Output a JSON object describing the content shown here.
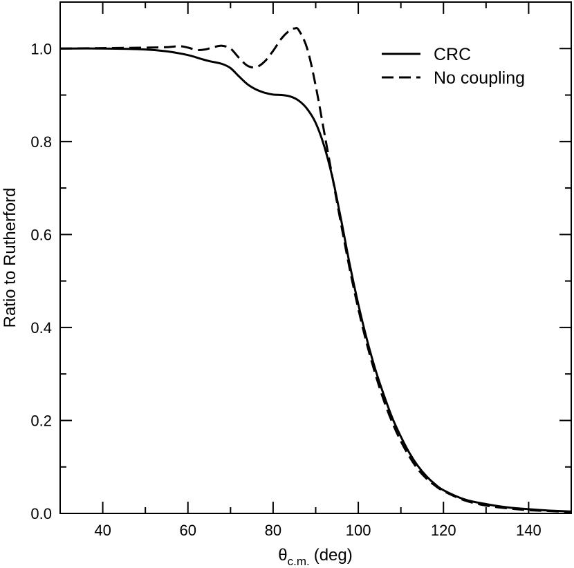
{
  "chart_data": {
    "type": "line",
    "title": "",
    "xlabel": {
      "symbol": "θ",
      "subscript": "c.m.",
      "unit": "(deg)"
    },
    "ylabel": "Ratio to Rutherford",
    "xlim": [
      30,
      150
    ],
    "ylim": [
      0,
      1.1
    ],
    "xticks": [
      40,
      60,
      80,
      100,
      120,
      140
    ],
    "xtick_labels": [
      "40",
      "60",
      "80",
      "100",
      "120",
      "140"
    ],
    "yticks": [
      0,
      0.2,
      0.4,
      0.6,
      0.8,
      1.0
    ],
    "ytick_labels": [
      "0.0",
      "0.2",
      "0.4",
      "0.6",
      "0.8",
      "1.0"
    ],
    "x_minor_step": 10,
    "y_minor_step": 0.1,
    "grid": false,
    "legend_position": "top-right",
    "series": [
      {
        "name": "CRC",
        "style": "solid",
        "color": "#000000",
        "x": [
          30,
          40,
          50,
          55,
          60,
          63,
          65,
          68,
          70,
          72,
          74,
          76,
          78,
          80,
          82,
          84,
          86,
          88,
          90,
          92,
          94,
          96,
          98,
          100,
          102,
          104,
          106,
          108,
          110,
          112,
          114,
          116,
          118,
          120,
          125,
          130,
          135,
          140,
          145,
          150
        ],
        "y": [
          1.0,
          1.0,
          0.998,
          0.994,
          0.986,
          0.978,
          0.973,
          0.967,
          0.958,
          0.94,
          0.923,
          0.912,
          0.905,
          0.901,
          0.9,
          0.897,
          0.888,
          0.87,
          0.84,
          0.79,
          0.72,
          0.63,
          0.535,
          0.45,
          0.375,
          0.31,
          0.255,
          0.205,
          0.165,
          0.13,
          0.102,
          0.08,
          0.063,
          0.05,
          0.03,
          0.02,
          0.013,
          0.009,
          0.006,
          0.004
        ]
      },
      {
        "name": "No coupling",
        "style": "dashed",
        "color": "#000000",
        "x": [
          30,
          40,
          50,
          55,
          58,
          60,
          62,
          64,
          66,
          68,
          70,
          72,
          74,
          76,
          78,
          80,
          82,
          84,
          85,
          86,
          88,
          90,
          92,
          94,
          96,
          98,
          100,
          102,
          104,
          106,
          108,
          110,
          112,
          114,
          116,
          118,
          120,
          125,
          130,
          135,
          140,
          145,
          150
        ],
        "y": [
          1.0,
          1.001,
          1.002,
          1.003,
          1.005,
          1.002,
          0.997,
          0.998,
          1.003,
          1.006,
          1.0,
          0.98,
          0.963,
          0.96,
          0.972,
          0.995,
          1.022,
          1.04,
          1.043,
          1.04,
          1.0,
          0.92,
          0.82,
          0.72,
          0.62,
          0.525,
          0.44,
          0.365,
          0.3,
          0.243,
          0.195,
          0.155,
          0.122,
          0.095,
          0.075,
          0.06,
          0.048,
          0.028,
          0.017,
          0.011,
          0.007,
          0.005,
          0.003
        ]
      }
    ]
  }
}
